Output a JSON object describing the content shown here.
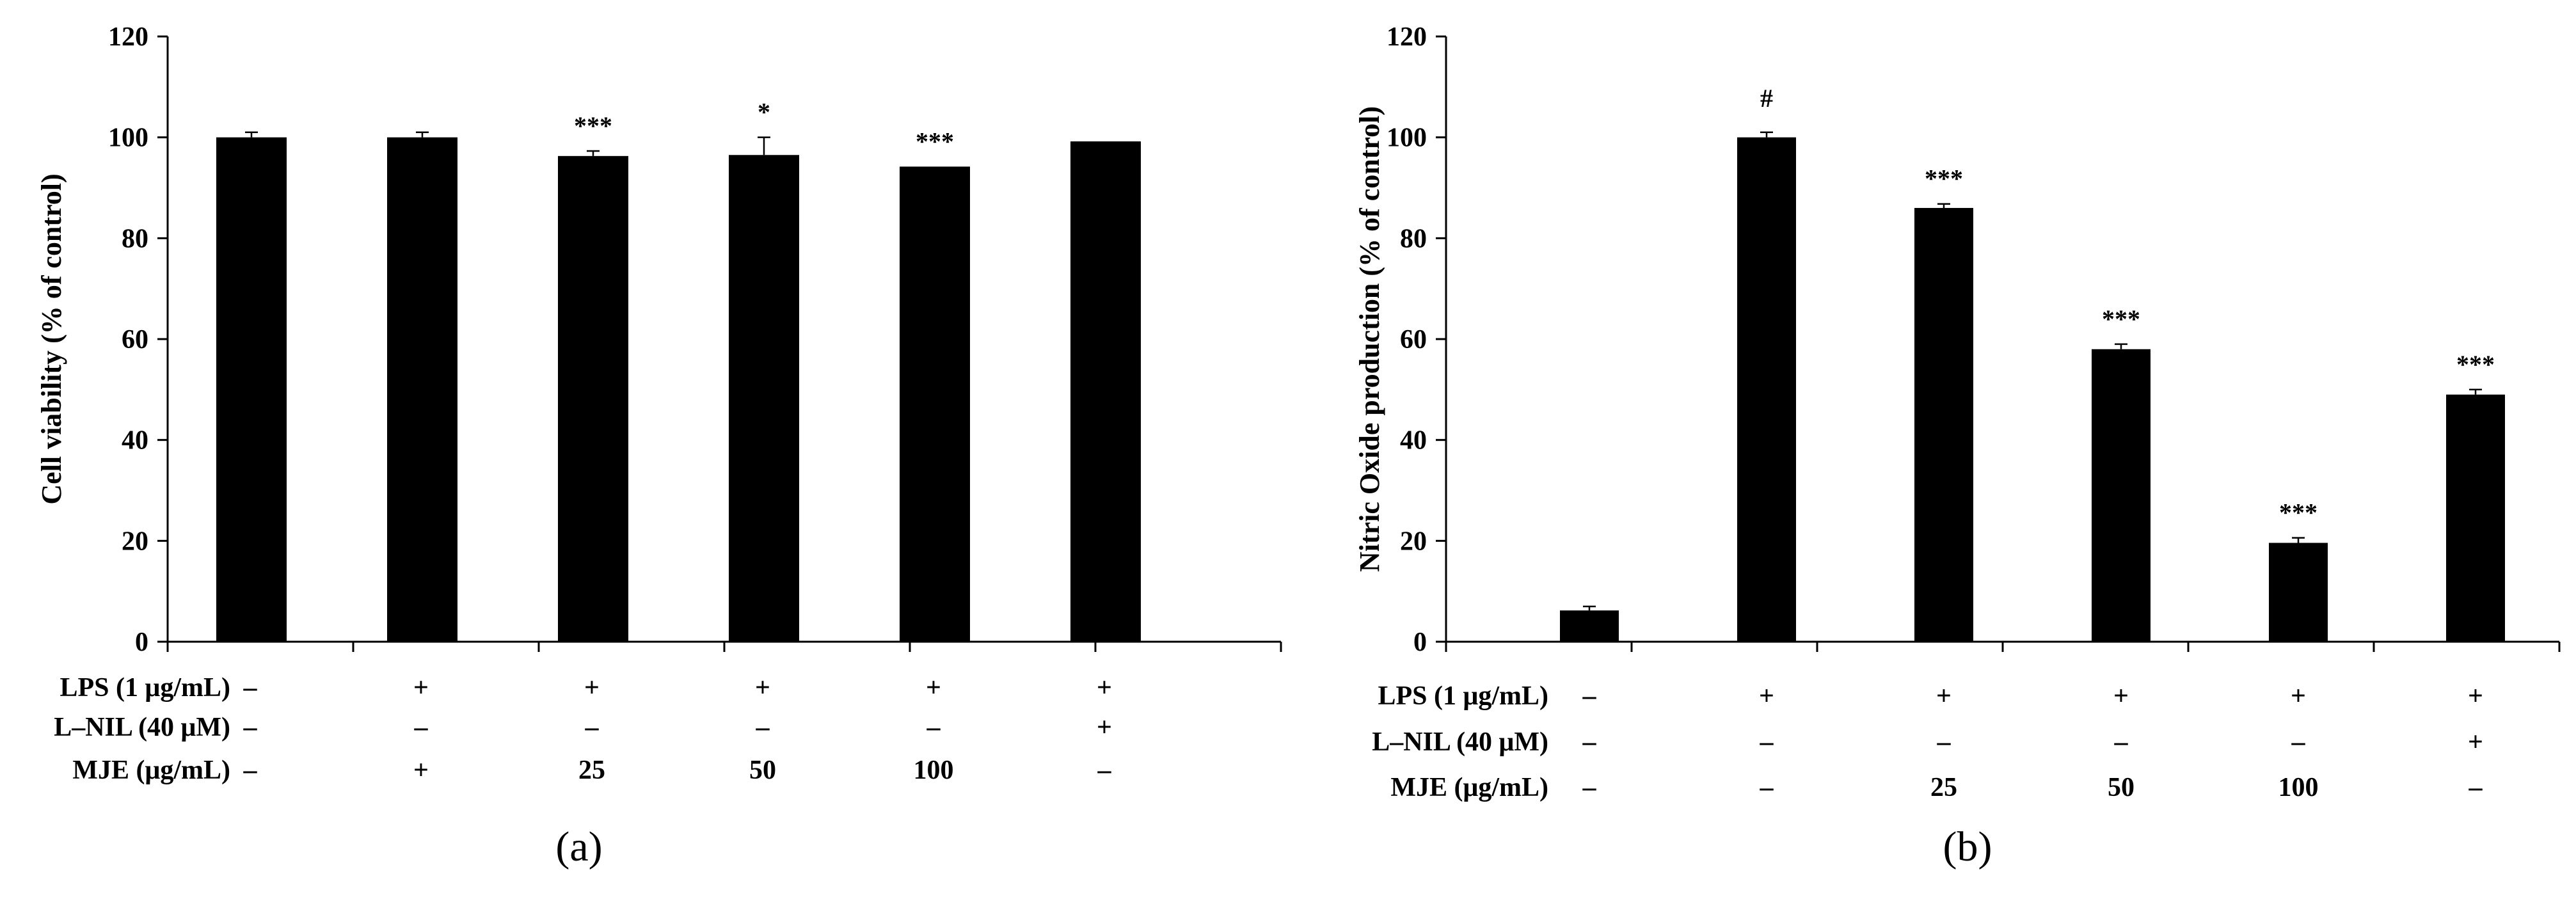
{
  "chart_data": [
    {
      "type": "bar",
      "panel_label": "(a)",
      "ylabel": "Cell viability (% of control)",
      "ylim": [
        0,
        120
      ],
      "yticks": [
        0,
        20,
        40,
        60,
        80,
        100,
        120
      ],
      "categories": [
        "1",
        "2",
        "3",
        "4",
        "5",
        "6"
      ],
      "values": [
        100,
        100,
        96.3,
        96.5,
        94.2,
        99.2
      ],
      "errors": [
        1.0,
        1.0,
        1.0,
        3.5,
        0,
        0
      ],
      "annotations": [
        "",
        "",
        "***",
        "*",
        "***",
        ""
      ],
      "conditions": [
        {
          "label": "LPS (1 μg/mL)",
          "values": [
            "–",
            "+",
            "+",
            "+",
            "+",
            "+"
          ]
        },
        {
          "label": "L–NIL (40 μM)",
          "values": [
            "–",
            "–",
            "–",
            "–",
            "–",
            "+"
          ]
        },
        {
          "label": "MJE (μg/mL)",
          "values": [
            "–",
            "+",
            "25",
            "50",
            "100",
            "–"
          ]
        }
      ],
      "grid": false,
      "bar_color": "#000000"
    },
    {
      "type": "bar",
      "panel_label": "(b)",
      "ylabel": "Nitric Oxide production (% of control)",
      "ylim": [
        0,
        120
      ],
      "yticks": [
        0,
        20,
        40,
        60,
        80,
        100,
        120
      ],
      "categories": [
        "1",
        "2",
        "3",
        "4",
        "5",
        "6"
      ],
      "values": [
        6.2,
        100,
        86,
        58,
        19.6,
        49
      ],
      "errors": [
        0.8,
        1.0,
        0.8,
        1.0,
        1.0,
        1.0
      ],
      "annotations": [
        "",
        "#",
        "***",
        "***",
        "***",
        "***"
      ],
      "conditions": [
        {
          "label": "LPS (1 μg/mL)",
          "values": [
            "–",
            "+",
            "+",
            "+",
            "+",
            "+"
          ]
        },
        {
          "label": "L–NIL (40 μM)",
          "values": [
            "–",
            "–",
            "–",
            "–",
            "–",
            "+"
          ]
        },
        {
          "label": "MJE (μg/mL)",
          "values": [
            "–",
            "–",
            "25",
            "50",
            "100",
            "–"
          ]
        }
      ],
      "grid": false,
      "bar_color": "#000000"
    }
  ]
}
